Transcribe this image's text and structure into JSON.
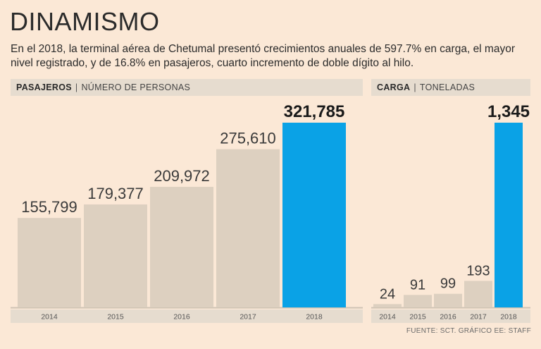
{
  "title": "DINAMISMO",
  "subtitle": "En el 2018, la terminal aérea de Chetumal presentó crecimientos anuales de 597.7% en carga, el mayor nivel registrado, y de 16.8% en pasajeros, cuarto incremento de doble dígito al hilo.",
  "source": "FUENTE: SCT. GRÁFICO EE: STAFF",
  "colors": {
    "bar": "#ddd0c0",
    "highlight": "#0aa2e6",
    "axis": "#cfc3b4",
    "strip": "#e6dccf"
  },
  "chart_data": [
    {
      "type": "bar",
      "panel": "pasajeros",
      "header_bold": "PASAJEROS",
      "header_light": "NÚMERO DE PERSONAS",
      "categories": [
        "2014",
        "2015",
        "2016",
        "2017",
        "2018"
      ],
      "values": [
        155799,
        179377,
        209972,
        275610,
        321785
      ],
      "value_labels": [
        "155,799",
        "179,377",
        "209,972",
        "275,610",
        "321,785"
      ],
      "highlight_index": 4
    },
    {
      "type": "bar",
      "panel": "carga",
      "header_bold": "CARGA",
      "header_light": "TONELADAS",
      "categories": [
        "2014",
        "2015",
        "2016",
        "2017",
        "2018"
      ],
      "values": [
        24,
        91,
        99,
        193,
        1345
      ],
      "value_labels": [
        "24",
        "91",
        "99",
        "193",
        "1,345"
      ],
      "highlight_index": 4
    }
  ]
}
